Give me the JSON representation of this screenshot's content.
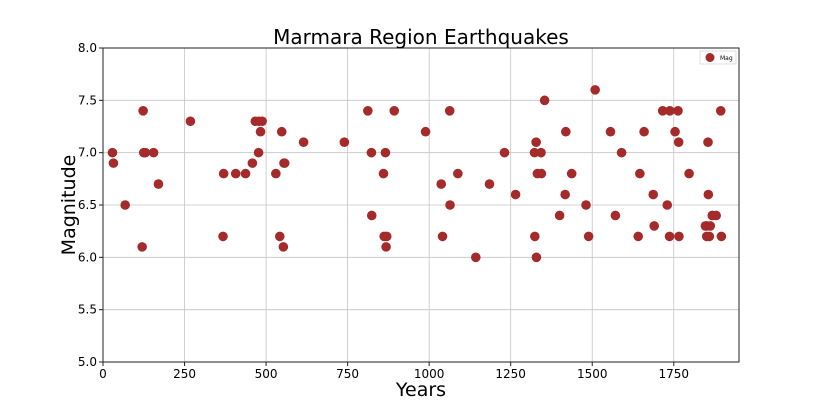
{
  "chart_data": {
    "type": "scatter",
    "title": "Marmara Region Earthquakes",
    "xlabel": "Years",
    "ylabel": "Magnitude",
    "xlim": [
      0,
      1950
    ],
    "ylim": [
      5.0,
      8.0
    ],
    "x_ticks": [
      0,
      250,
      500,
      750,
      1000,
      1250,
      1500,
      1750
    ],
    "y_ticks": [
      "5.0",
      "5.5",
      "6.0",
      "6.5",
      "7.0",
      "7.5",
      "8.0"
    ],
    "grid": "on",
    "legend_position": "top-right",
    "series": [
      {
        "name": "Mag",
        "color": "#a52a2a",
        "points": [
          [
            29,
            7.0
          ],
          [
            32,
            6.9
          ],
          [
            68,
            6.5
          ],
          [
            120,
            6.1
          ],
          [
            123,
            7.4
          ],
          [
            125,
            7.0
          ],
          [
            130,
            7.0
          ],
          [
            155,
            7.0
          ],
          [
            170,
            6.7
          ],
          [
            268,
            7.3
          ],
          [
            368,
            6.2
          ],
          [
            370,
            6.8
          ],
          [
            407,
            6.8
          ],
          [
            437,
            6.8
          ],
          [
            458,
            6.9
          ],
          [
            467,
            7.3
          ],
          [
            477,
            7.0
          ],
          [
            478,
            7.3
          ],
          [
            483,
            7.2
          ],
          [
            488,
            7.3
          ],
          [
            530,
            6.8
          ],
          [
            542,
            6.2
          ],
          [
            548,
            7.2
          ],
          [
            553,
            6.1
          ],
          [
            555,
            6.9
          ],
          [
            557,
            6.9
          ],
          [
            615,
            7.1
          ],
          [
            740,
            7.1
          ],
          [
            812,
            7.4
          ],
          [
            823,
            7.0
          ],
          [
            824,
            6.4
          ],
          [
            860,
            6.8
          ],
          [
            862,
            6.2
          ],
          [
            866,
            7.0
          ],
          [
            868,
            6.1
          ],
          [
            870,
            6.2
          ],
          [
            893,
            7.4
          ],
          [
            989,
            7.2
          ],
          [
            1037,
            6.7
          ],
          [
            1041,
            6.2
          ],
          [
            1063,
            7.4
          ],
          [
            1064,
            6.5
          ],
          [
            1088,
            6.8
          ],
          [
            1143,
            6.0
          ],
          [
            1185,
            6.7
          ],
          [
            1231,
            7.0
          ],
          [
            1265,
            6.6
          ],
          [
            1323,
            7.0
          ],
          [
            1324,
            6.2
          ],
          [
            1328,
            7.1
          ],
          [
            1329,
            6.0
          ],
          [
            1332,
            6.8
          ],
          [
            1343,
            7.0
          ],
          [
            1344,
            6.8
          ],
          [
            1354,
            7.5
          ],
          [
            1400,
            6.4
          ],
          [
            1417,
            6.6
          ],
          [
            1419,
            7.2
          ],
          [
            1437,
            6.8
          ],
          [
            1481,
            6.5
          ],
          [
            1489,
            6.2
          ],
          [
            1509,
            7.6
          ],
          [
            1556,
            7.2
          ],
          [
            1571,
            6.4
          ],
          [
            1590,
            7.0
          ],
          [
            1641,
            6.2
          ],
          [
            1646,
            6.8
          ],
          [
            1659,
            7.2
          ],
          [
            1687,
            6.6
          ],
          [
            1690,
            6.3
          ],
          [
            1716,
            7.4
          ],
          [
            1730,
            6.5
          ],
          [
            1737,
            6.2
          ],
          [
            1738,
            7.4
          ],
          [
            1754,
            7.2
          ],
          [
            1763,
            7.4
          ],
          [
            1765,
            7.1
          ],
          [
            1766,
            6.2
          ],
          [
            1797,
            6.8
          ],
          [
            1847,
            6.3
          ],
          [
            1851,
            6.2
          ],
          [
            1852,
            6.3
          ],
          [
            1855,
            7.1
          ],
          [
            1856,
            6.6
          ],
          [
            1859,
            6.2
          ],
          [
            1862,
            6.3
          ],
          [
            1868,
            6.4
          ],
          [
            1880,
            6.4
          ],
          [
            1894,
            7.4
          ],
          [
            1896,
            6.2
          ]
        ]
      }
    ]
  }
}
